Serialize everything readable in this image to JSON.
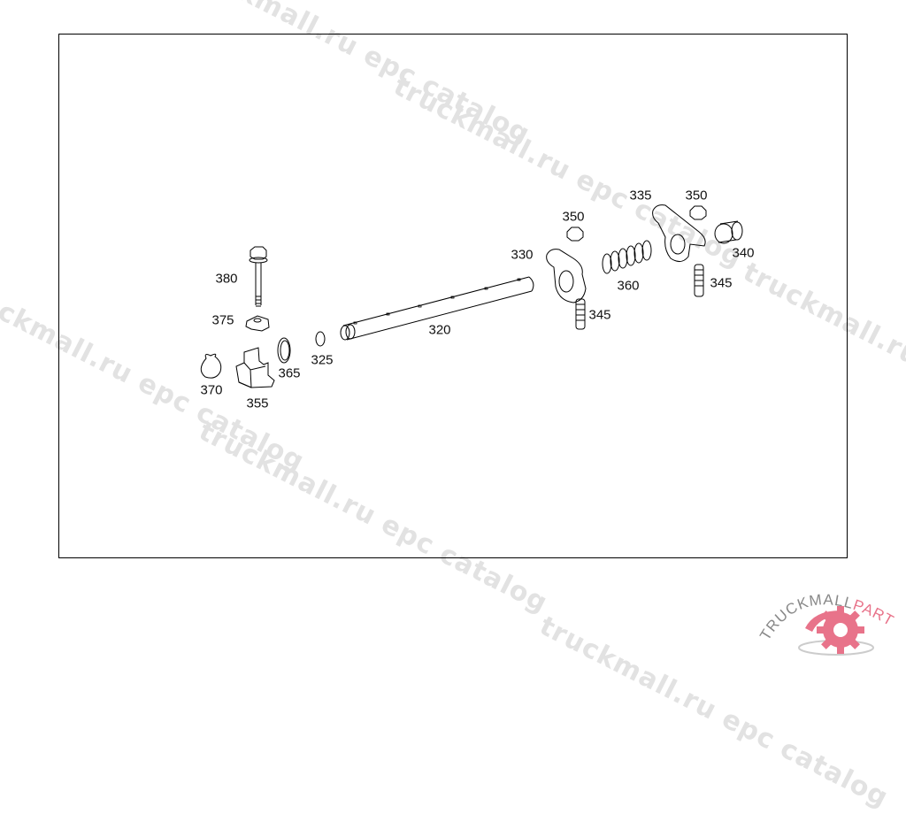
{
  "watermark": "truckmall.ru epc catalog",
  "diagram": {
    "labels": [
      {
        "id": "335",
        "text": "335"
      },
      {
        "id": "350a",
        "text": "350"
      },
      {
        "id": "350b",
        "text": "350"
      },
      {
        "id": "330",
        "text": "330"
      },
      {
        "id": "340",
        "text": "340"
      },
      {
        "id": "360",
        "text": "360"
      },
      {
        "id": "345a",
        "text": "345"
      },
      {
        "id": "345b",
        "text": "345"
      },
      {
        "id": "380",
        "text": "380"
      },
      {
        "id": "375",
        "text": "375"
      },
      {
        "id": "320",
        "text": "320"
      },
      {
        "id": "325",
        "text": "325"
      },
      {
        "id": "365",
        "text": "365"
      },
      {
        "id": "370",
        "text": "370"
      },
      {
        "id": "355",
        "text": "355"
      }
    ]
  },
  "logo": {
    "text_left": "TRUCKMALL",
    "text_right": "PARTS",
    "accent": "#e8738a",
    "gray": "#888888"
  }
}
